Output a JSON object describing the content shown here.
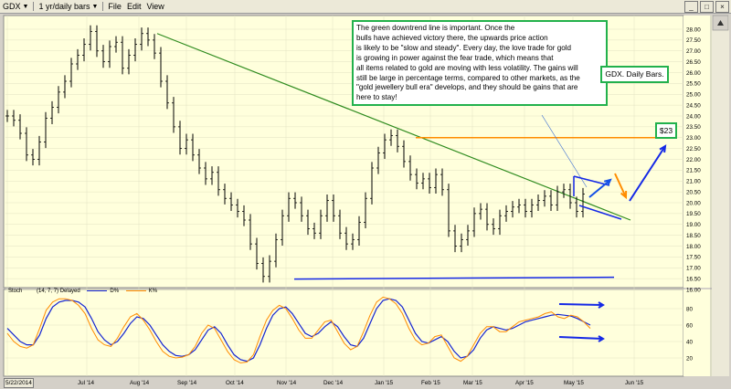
{
  "menubar": {
    "symbol": "GDX",
    "period": "1 yr/daily bars",
    "menus": [
      "File",
      "Edit",
      "View"
    ]
  },
  "annotations": {
    "main_lines": [
      "The green downtrend line is important.  Once the",
      "bulls have achieved victory there, the upwards price action",
      "is likely to be \"slow and steady\".  Every day, the love trade for gold",
      "is growing in power against the fear trade, which means that",
      "all items related to gold are moving with less volatility.  The gains will",
      "still be large in percentage terms, compared to other markets, as the",
      "\"gold jewellery bull era\" develops, and they should be gains that are",
      "here to stay!"
    ],
    "gdx_label": "GDX. Daily Bars.",
    "target_label": "$23"
  },
  "stoch": {
    "label": "Stoch",
    "params": "(14, 7, 7) Delayed",
    "d_label": "D%",
    "k_label": "K%",
    "y_ticks": [
      "80",
      "60",
      "40",
      "20"
    ]
  },
  "chart_data": {
    "type": "line",
    "title": "",
    "price_y_ticks": [
      "28.00",
      "27.50",
      "27.00",
      "26.50",
      "26.00",
      "25.50",
      "25.00",
      "24.50",
      "24.00",
      "23.50",
      "23.00",
      "22.50",
      "22.00",
      "21.50",
      "21.00",
      "20.50",
      "20.00",
      "19.50",
      "19.00",
      "18.50",
      "18.00",
      "17.50",
      "17.00",
      "16.50",
      "16.00"
    ],
    "ylim": [
      16.0,
      28.0
    ],
    "x_labels": [
      "5/22/2014",
      "Jul '14",
      "Aug '14",
      "Sep '14",
      "Oct '14",
      "Nov '14",
      "Dec '14",
      "Jan '15",
      "Feb '15",
      "Mar '15",
      "Apr '15",
      "May '15",
      "Jun '15"
    ],
    "price_series": [
      {
        "name": "GDX",
        "values": [
          24.0,
          23.8,
          23.2,
          22.2,
          22.0,
          22.8,
          23.9,
          24.4,
          25.1,
          25.6,
          26.4,
          26.8,
          27.3,
          27.9,
          27.0,
          26.5,
          27.2,
          27.4,
          26.2,
          26.8,
          27.3,
          27.8,
          27.5,
          26.9,
          25.6,
          24.6,
          23.5,
          22.5,
          22.9,
          22.2,
          21.6,
          21.1,
          21.4,
          20.6,
          20.2,
          19.9,
          19.6,
          19.2,
          18.1,
          17.2,
          16.6,
          17.3,
          18.3,
          19.4,
          20.2,
          20.0,
          19.4,
          18.8,
          18.6,
          19.4,
          20.1,
          19.4,
          18.6,
          18.1,
          18.3,
          19.1,
          20.2,
          21.6,
          22.3,
          22.9,
          23.1,
          22.6,
          21.9,
          21.3,
          20.9,
          21.1,
          20.7,
          21.3,
          20.6,
          18.7,
          18.0,
          18.3,
          18.7,
          19.5,
          19.7,
          19.0,
          18.8,
          19.4,
          19.6,
          19.8,
          19.9,
          19.6,
          19.9,
          20.1,
          20.3,
          19.9,
          20.5,
          20.6,
          20.0,
          19.6,
          20.4
        ]
      }
    ],
    "stoch_series": [
      {
        "name": "D%",
        "values": [
          56,
          48,
          40,
          36,
          36,
          48,
          68,
          82,
          88,
          90,
          90,
          88,
          82,
          68,
          52,
          42,
          36,
          40,
          50,
          62,
          70,
          68,
          60,
          48,
          36,
          28,
          23,
          22,
          24,
          30,
          42,
          54,
          58,
          50,
          36,
          24,
          18,
          16,
          20,
          36,
          56,
          72,
          80,
          82,
          74,
          62,
          50,
          46,
          50,
          58,
          64,
          58,
          46,
          36,
          34,
          44,
          62,
          80,
          90,
          92,
          90,
          82,
          66,
          50,
          40,
          38,
          42,
          46,
          40,
          28,
          20,
          22,
          30,
          44,
          54,
          58,
          56,
          54,
          56,
          60,
          64,
          66,
          68,
          70,
          72,
          73,
          72,
          71,
          68,
          64,
          60
        ]
      },
      {
        "name": "K%",
        "values": [
          50,
          40,
          34,
          32,
          36,
          56,
          78,
          88,
          92,
          92,
          90,
          84,
          74,
          56,
          42,
          36,
          34,
          44,
          58,
          70,
          74,
          66,
          54,
          40,
          28,
          22,
          20,
          21,
          24,
          34,
          50,
          60,
          56,
          42,
          28,
          18,
          14,
          15,
          24,
          46,
          66,
          78,
          84,
          80,
          68,
          54,
          44,
          44,
          54,
          64,
          66,
          52,
          38,
          30,
          34,
          52,
          72,
          88,
          94,
          92,
          86,
          74,
          56,
          42,
          36,
          38,
          46,
          48,
          34,
          20,
          16,
          22,
          36,
          50,
          58,
          58,
          52,
          52,
          58,
          64,
          66,
          68,
          70,
          74,
          76,
          70,
          68,
          72,
          70,
          64,
          56
        ]
      }
    ],
    "trendlines": {
      "downtrend": {
        "color": "#2e8b1e",
        "start": [
          "Aug '14",
          27.8
        ],
        "end": [
          "Jun '15",
          19.2
        ]
      },
      "resistance_23": {
        "color": "#ff8c00",
        "value": 23.0
      },
      "support": {
        "color": "#1428e6",
        "value": 16.5
      }
    },
    "colors": {
      "background": "#ffffdc",
      "price_bars": "#000000",
      "d_line": "#1424d2",
      "k_line": "#ff8c00",
      "annotation_border": "#22b14c"
    }
  }
}
